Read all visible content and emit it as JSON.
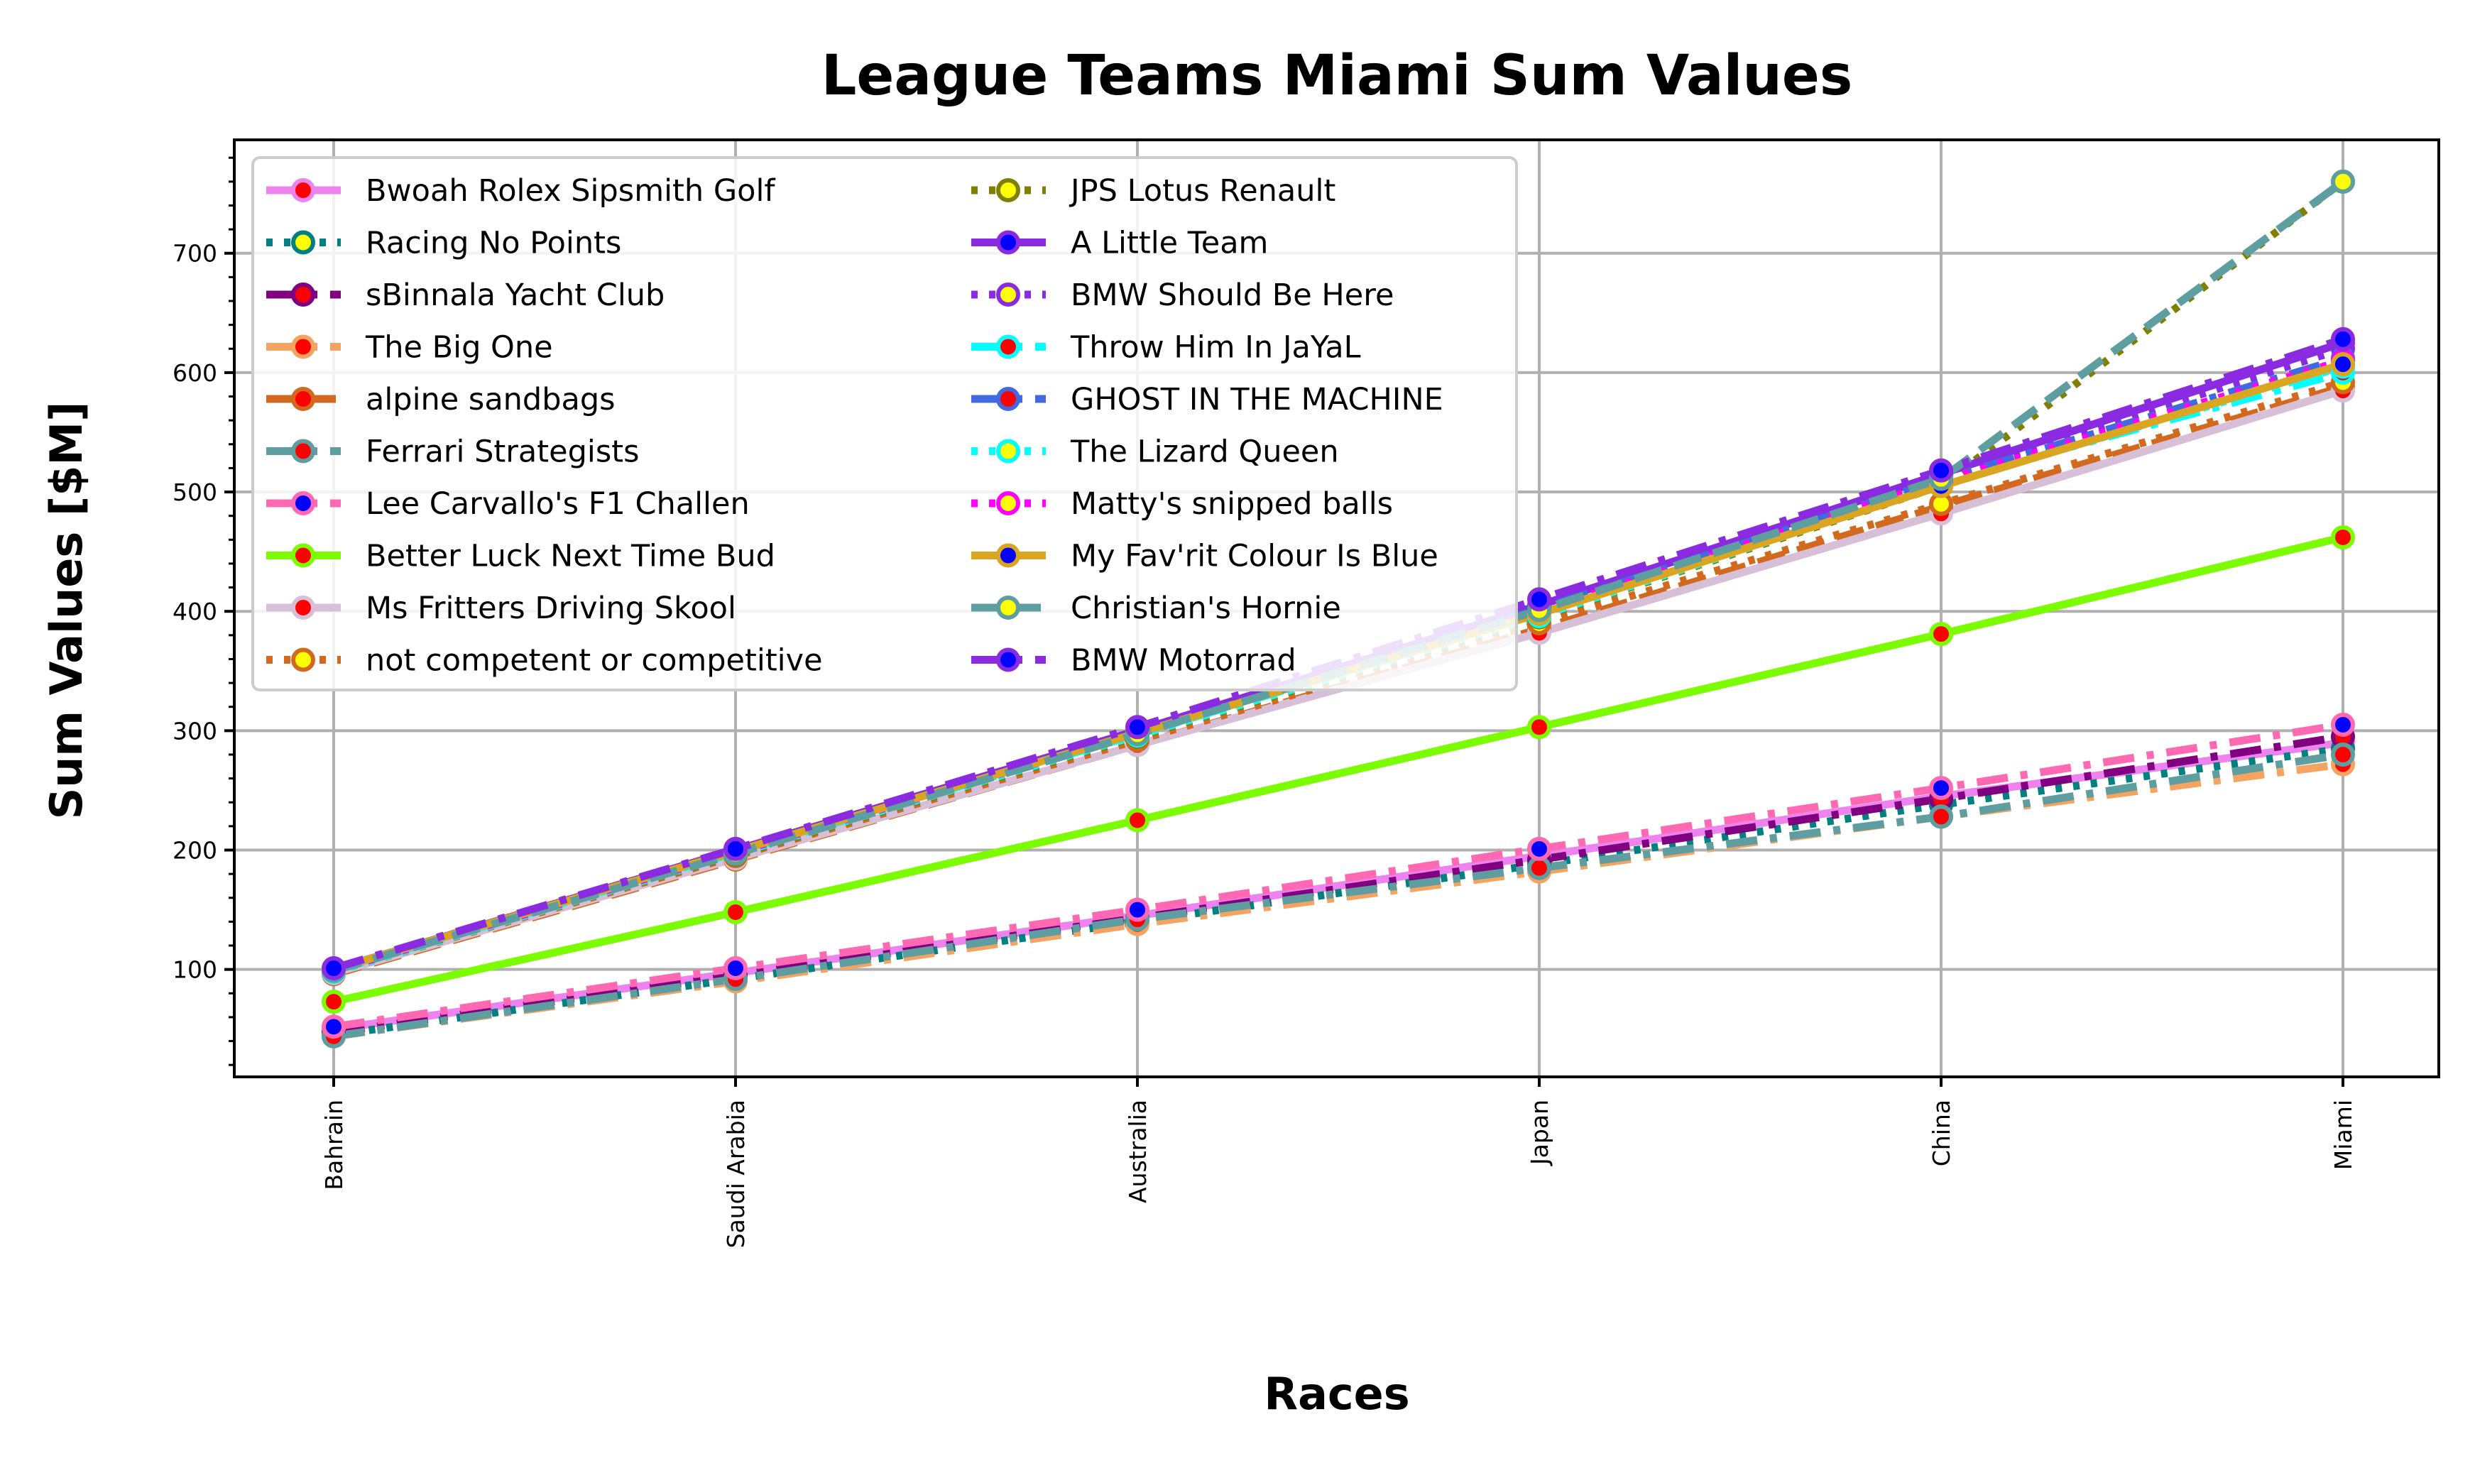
{
  "chart_data": {
    "type": "line",
    "title": "League Teams Miami Sum Values",
    "xlabel": "Races",
    "ylabel": "Sum Values [$M]",
    "categories": [
      "Bahrain",
      "Saudi Arabia",
      "Australia",
      "Japan",
      "China",
      "Miami"
    ],
    "ylim": [
      10,
      795
    ],
    "yticks": [
      100,
      200,
      300,
      400,
      500,
      600,
      700
    ],
    "grid": true,
    "legend_position": "top-left",
    "legend_columns": 2,
    "series": [
      {
        "name": "Bwoah Rolex Sipsmith Golf",
        "values": [
          50,
          97,
          145,
          195,
          245,
          290
        ],
        "color": "#ee82ee",
        "dash": "solid",
        "marker_face": "#ff0000",
        "marker_edge": "#ee82ee"
      },
      {
        "name": "Racing No Points",
        "values": [
          45,
          92,
          140,
          188,
          238,
          285
        ],
        "color": "#008080",
        "dash": "dot",
        "marker_face": "#ffff00",
        "marker_edge": "#008080"
      },
      {
        "name": "sBinnala Yacht Club",
        "values": [
          47,
          95,
          143,
          192,
          243,
          295
        ],
        "color": "#800080",
        "dash": "dashdot",
        "marker_face": "#ff0000",
        "marker_edge": "#800080"
      },
      {
        "name": "The Big One",
        "values": [
          44,
          90,
          138,
          182,
          228,
          272
        ],
        "color": "#f4a460",
        "dash": "dashdot",
        "marker_face": "#ff0000",
        "marker_edge": "#f4a460"
      },
      {
        "name": "alpine sandbags",
        "values": [
          96,
          192,
          288,
          385,
          488,
          588
        ],
        "color": "#d2691e",
        "dash": "dashed",
        "marker_face": "#ff0000",
        "marker_edge": "#d2691e"
      },
      {
        "name": "Ferrari Strategists",
        "values": [
          44,
          92,
          142,
          185,
          228,
          280
        ],
        "color": "#5f9ea0",
        "dash": "dashdot",
        "marker_face": "#ff0000",
        "marker_edge": "#5f9ea0"
      },
      {
        "name": "Lee Carvallo's F1 Challen",
        "values": [
          52,
          101,
          150,
          201,
          252,
          305
        ],
        "color": "#ff69b4",
        "dash": "dashdot",
        "marker_face": "#0000ff",
        "marker_edge": "#ff69b4"
      },
      {
        "name": "Better Luck Next Time Bud",
        "values": [
          73,
          148,
          225,
          303,
          381,
          462
        ],
        "color": "#7cfc00",
        "dash": "solid",
        "marker_face": "#ff0000",
        "marker_edge": "#7cfc00"
      },
      {
        "name": "Ms Fritters Driving Skool",
        "values": [
          97,
          193,
          288,
          382,
          482,
          585
        ],
        "color": "#d8bfd8",
        "dash": "solid",
        "marker_face": "#ff0000",
        "marker_edge": "#d8bfd8"
      },
      {
        "name": "not competent or competitive",
        "values": [
          98,
          195,
          292,
          390,
          490,
          592
        ],
        "color": "#d2691e",
        "dash": "dot",
        "marker_face": "#ffff00",
        "marker_edge": "#d2691e"
      },
      {
        "name": "JPS Lotus Renault",
        "values": [
          99,
          196,
          295,
          395,
          505,
          760
        ],
        "color": "#808000",
        "dash": "dot",
        "marker_face": "#ffff00",
        "marker_edge": "#808000"
      },
      {
        "name": "A Little Team",
        "values": [
          100,
          200,
          300,
          405,
          515,
          625
        ],
        "color": "#8a2be2",
        "dash": "solid",
        "marker_face": "#0000ff",
        "marker_edge": "#8a2be2"
      },
      {
        "name": "BMW Should Be Here",
        "values": [
          100,
          199,
          299,
          403,
          512,
          620
        ],
        "color": "#8a2be2",
        "dash": "dot",
        "marker_face": "#ffff00",
        "marker_edge": "#8a2be2"
      },
      {
        "name": "Throw Him In JaYaL",
        "values": [
          99,
          198,
          297,
          398,
          508,
          600
        ],
        "color": "#00ffff",
        "dash": "dashdot",
        "marker_face": "#ff0000",
        "marker_edge": "#00ffff"
      },
      {
        "name": "GHOST IN THE MACHINE",
        "values": [
          100,
          200,
          300,
          402,
          510,
          612
        ],
        "color": "#4169e1",
        "dash": "dashdot",
        "marker_face": "#ff0000",
        "marker_edge": "#4169e1"
      },
      {
        "name": "The Lizard Queen",
        "values": [
          98,
          197,
          296,
          396,
          506,
          605
        ],
        "color": "#00ffff",
        "dash": "dot",
        "marker_face": "#ffff00",
        "marker_edge": "#00ffff"
      },
      {
        "name": "Matty's snipped balls",
        "values": [
          99,
          198,
          298,
          400,
          509,
          610
        ],
        "color": "#ff00ff",
        "dash": "dot",
        "marker_face": "#ffff00",
        "marker_edge": "#ff00ff"
      },
      {
        "name": "My Fav'rit Colour Is Blue",
        "values": [
          100,
          199,
          298,
          398,
          505,
          607
        ],
        "color": "#daa520",
        "dash": "solid",
        "marker_face": "#0000ff",
        "marker_edge": "#daa520"
      },
      {
        "name": "Christian's Hornie",
        "values": [
          99,
          197,
          297,
          401,
          511,
          760
        ],
        "color": "#5f9ea0",
        "dash": "dashed",
        "marker_face": "#ffff00",
        "marker_edge": "#5f9ea0"
      },
      {
        "name": "BMW Motorrad",
        "values": [
          101,
          201,
          303,
          410,
          518,
          628
        ],
        "color": "#8a2be2",
        "dash": "dashdot",
        "marker_face": "#0000ff",
        "marker_edge": "#8a2be2"
      }
    ]
  }
}
